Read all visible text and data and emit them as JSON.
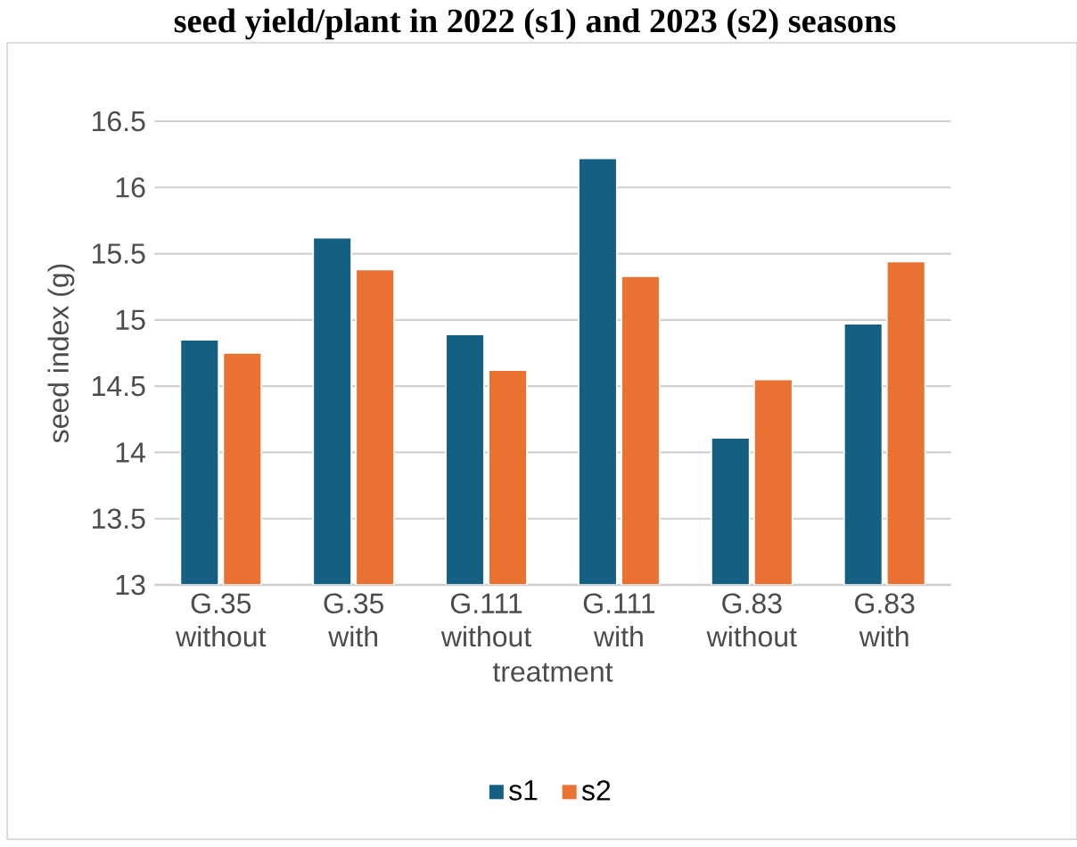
{
  "chart_data": {
    "type": "bar",
    "title": "seed yield/plant in 2022 (s1) and 2023 (s2) seasons",
    "xlabel": "treatment",
    "ylabel": "seed index (g)",
    "categories": [
      "G.35 without",
      "G.35 with",
      "G.111 without",
      "G.111 with",
      "G.83 without",
      "G.83 with"
    ],
    "series": [
      {
        "name": "s1",
        "color": "#156082",
        "values": [
          14.85,
          15.62,
          14.89,
          16.22,
          14.11,
          14.97
        ]
      },
      {
        "name": "s2",
        "color": "#e97132",
        "values": [
          14.75,
          15.38,
          14.62,
          15.33,
          14.55,
          15.44
        ]
      }
    ],
    "ylim": [
      13,
      16.5
    ],
    "yticks": [
      13,
      13.5,
      14,
      14.5,
      15,
      15.5,
      16,
      16.5
    ],
    "grid": "y",
    "legend": "bottom"
  }
}
